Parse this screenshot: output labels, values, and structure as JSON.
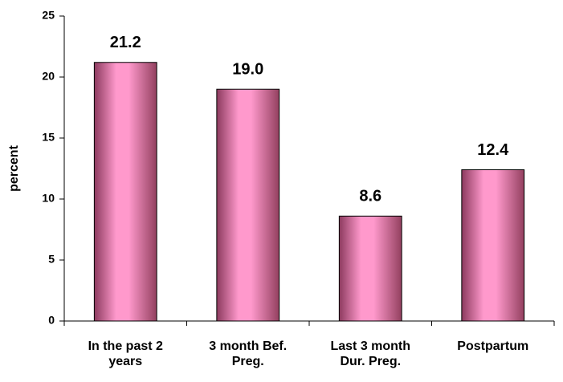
{
  "chart_data": {
    "type": "bar",
    "y_label": "percent",
    "categories": [
      "In the past 2\nyears",
      "3 month Bef.\nPreg.",
      "Last 3 month\nDur. Preg.",
      "Postpartum"
    ],
    "values": [
      21.2,
      19.0,
      8.6,
      12.4
    ],
    "value_labels": [
      "21.2",
      "19.0",
      "8.6",
      "12.4"
    ],
    "color": "#ff99cc",
    "ylim": [
      0,
      25
    ],
    "yticks": [
      0,
      5,
      10,
      15,
      20,
      25
    ],
    "grid": false
  }
}
